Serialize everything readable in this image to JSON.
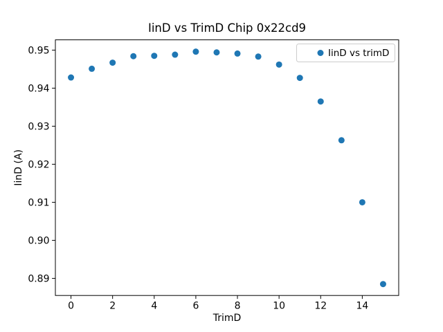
{
  "chart_data": {
    "type": "scatter",
    "title": "IinD vs TrimD Chip 0x22cd9",
    "xlabel": "TrimD",
    "ylabel": "IinD (A)",
    "legend": [
      {
        "label": "IinD vs trimD",
        "marker": "circle",
        "color": "#1f77b4"
      }
    ],
    "legend_position": "upper right",
    "x": [
      0,
      1,
      2,
      3,
      4,
      5,
      6,
      7,
      8,
      9,
      10,
      11,
      12,
      13,
      14,
      15
    ],
    "y": [
      0.9428,
      0.9451,
      0.9467,
      0.9484,
      0.9485,
      0.9488,
      0.9496,
      0.9494,
      0.9491,
      0.9483,
      0.9462,
      0.9427,
      0.9365,
      0.9263,
      0.91,
      0.8885
    ],
    "xlim": [
      -0.75,
      15.75
    ],
    "ylim": [
      0.8855,
      0.9527
    ],
    "x_tick_labels": [
      "0",
      "2",
      "4",
      "6",
      "8",
      "10",
      "12",
      "14"
    ],
    "y_tick_labels": [
      "0.89",
      "0.90",
      "0.91",
      "0.92",
      "0.93",
      "0.94",
      "0.95"
    ],
    "grid": false,
    "marker_color": "#1f77b4",
    "marker_radius_px": 4.5
  },
  "colors": {
    "marker": "#1f77b4",
    "legend_border": "#cccccc",
    "axes": "#000000",
    "background": "#ffffff"
  }
}
